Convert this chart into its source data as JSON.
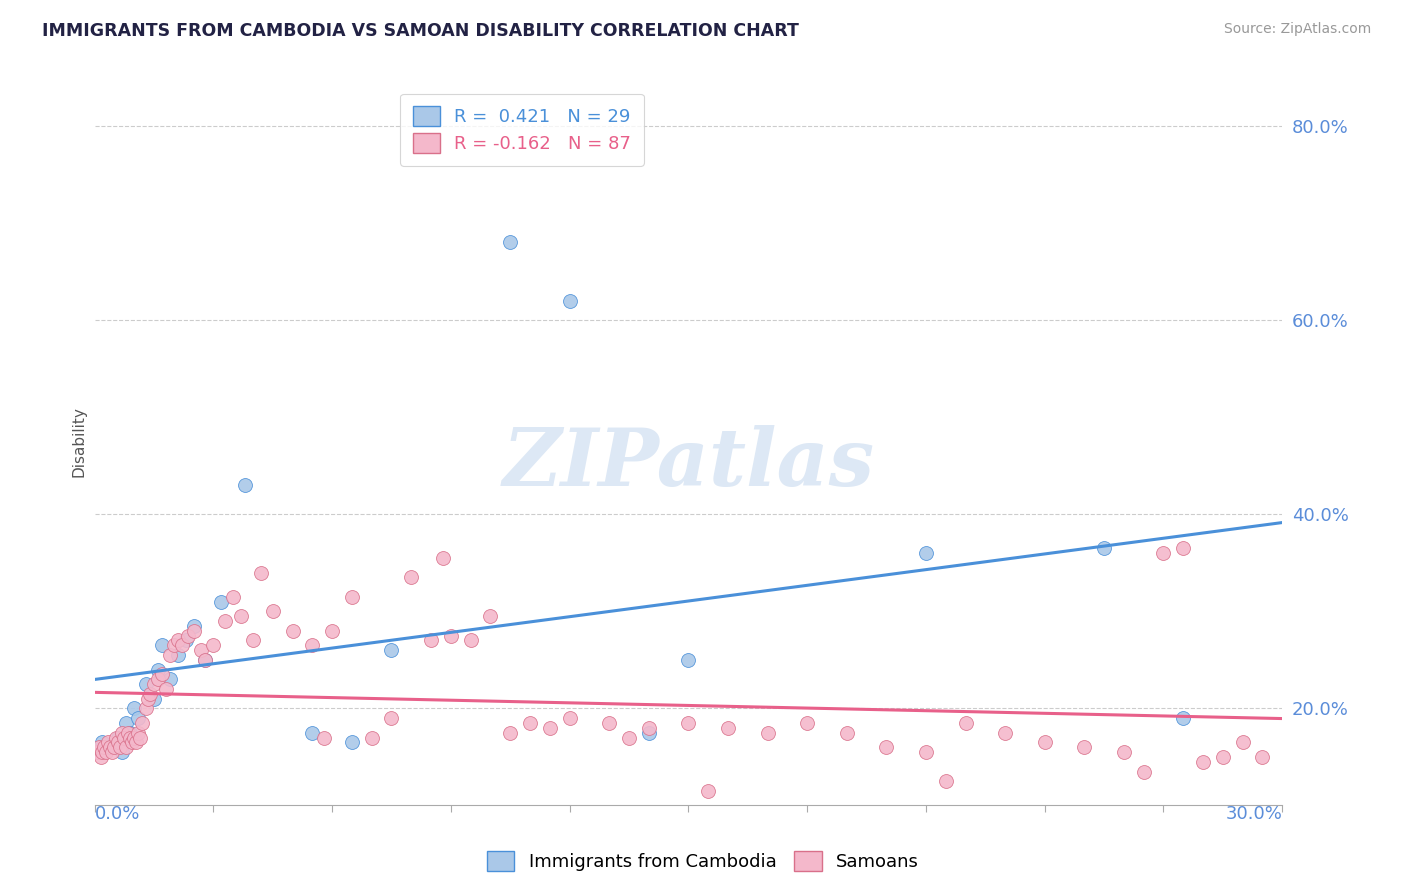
{
  "title": "IMMIGRANTS FROM CAMBODIA VS SAMOAN DISABILITY CORRELATION CHART",
  "source_text": "Source: ZipAtlas.com",
  "ylabel": "Disability",
  "xlim": [
    0.0,
    30.0
  ],
  "ylim": [
    10.0,
    85.0
  ],
  "yticks": [
    20.0,
    40.0,
    60.0,
    80.0
  ],
  "xticks": [
    0.0,
    3.0,
    6.0,
    9.0,
    12.0,
    15.0,
    18.0,
    21.0,
    24.0,
    27.0,
    30.0
  ],
  "blue_R": 0.421,
  "blue_N": 29,
  "pink_R": -0.162,
  "pink_N": 87,
  "blue_color": "#aac8e8",
  "pink_color": "#f4b8cb",
  "blue_line_color": "#4a90d9",
  "pink_line_color": "#e8608a",
  "legend_label_blue": "Immigrants from Cambodia",
  "legend_label_pink": "Samoans",
  "watermark": "ZIPatlas",
  "watermark_color": "#dde8f5",
  "blue_scatter_x": [
    0.2,
    0.4,
    0.6,
    0.7,
    0.8,
    0.9,
    1.0,
    1.1,
    1.3,
    1.5,
    1.6,
    1.7,
    1.9,
    2.1,
    2.3,
    2.5,
    2.8,
    3.2,
    3.8,
    5.5,
    6.5,
    7.5,
    10.5,
    12.0,
    14.0,
    15.0,
    21.0,
    25.5,
    27.5
  ],
  "blue_scatter_y": [
    16.5,
    16.0,
    17.0,
    15.5,
    18.5,
    17.5,
    20.0,
    19.0,
    22.5,
    21.0,
    24.0,
    26.5,
    23.0,
    25.5,
    27.0,
    28.5,
    25.0,
    31.0,
    43.0,
    17.5,
    16.5,
    26.0,
    68.0,
    62.0,
    17.5,
    25.0,
    36.0,
    36.5,
    19.0
  ],
  "pink_scatter_x": [
    0.05,
    0.1,
    0.15,
    0.2,
    0.25,
    0.3,
    0.35,
    0.4,
    0.45,
    0.5,
    0.55,
    0.6,
    0.65,
    0.7,
    0.75,
    0.8,
    0.85,
    0.9,
    0.95,
    1.0,
    1.05,
    1.1,
    1.15,
    1.2,
    1.3,
    1.35,
    1.4,
    1.5,
    1.6,
    1.7,
    1.8,
    1.9,
    2.0,
    2.1,
    2.2,
    2.35,
    2.5,
    2.7,
    3.0,
    3.3,
    3.7,
    4.0,
    4.5,
    5.0,
    5.5,
    6.0,
    6.5,
    7.0,
    7.5,
    8.0,
    9.0,
    9.5,
    10.0,
    11.0,
    12.0,
    13.0,
    14.0,
    15.0,
    16.0,
    17.0,
    18.0,
    19.0,
    20.0,
    21.0,
    22.0,
    23.0,
    24.0,
    25.0,
    26.0,
    27.0,
    27.5,
    28.0,
    29.0,
    29.5,
    3.5,
    4.2,
    5.8,
    8.5,
    10.5,
    11.5,
    13.5,
    15.5,
    21.5,
    26.5,
    28.5,
    2.8,
    8.8
  ],
  "pink_scatter_y": [
    15.5,
    16.0,
    15.0,
    15.5,
    16.0,
    15.5,
    16.5,
    16.0,
    15.5,
    16.0,
    17.0,
    16.5,
    16.0,
    17.5,
    17.0,
    16.0,
    17.5,
    17.0,
    16.5,
    17.0,
    16.5,
    17.5,
    17.0,
    18.5,
    20.0,
    21.0,
    21.5,
    22.5,
    23.0,
    23.5,
    22.0,
    25.5,
    26.5,
    27.0,
    26.5,
    27.5,
    28.0,
    26.0,
    26.5,
    29.0,
    29.5,
    27.0,
    30.0,
    28.0,
    26.5,
    28.0,
    31.5,
    17.0,
    19.0,
    33.5,
    27.5,
    27.0,
    29.5,
    18.5,
    19.0,
    18.5,
    18.0,
    18.5,
    18.0,
    17.5,
    18.5,
    17.5,
    16.0,
    15.5,
    18.5,
    17.5,
    16.5,
    16.0,
    15.5,
    36.0,
    36.5,
    14.5,
    16.5,
    15.0,
    31.5,
    34.0,
    17.0,
    27.0,
    17.5,
    18.0,
    17.0,
    11.5,
    12.5,
    13.5,
    15.0,
    25.0,
    35.5
  ]
}
